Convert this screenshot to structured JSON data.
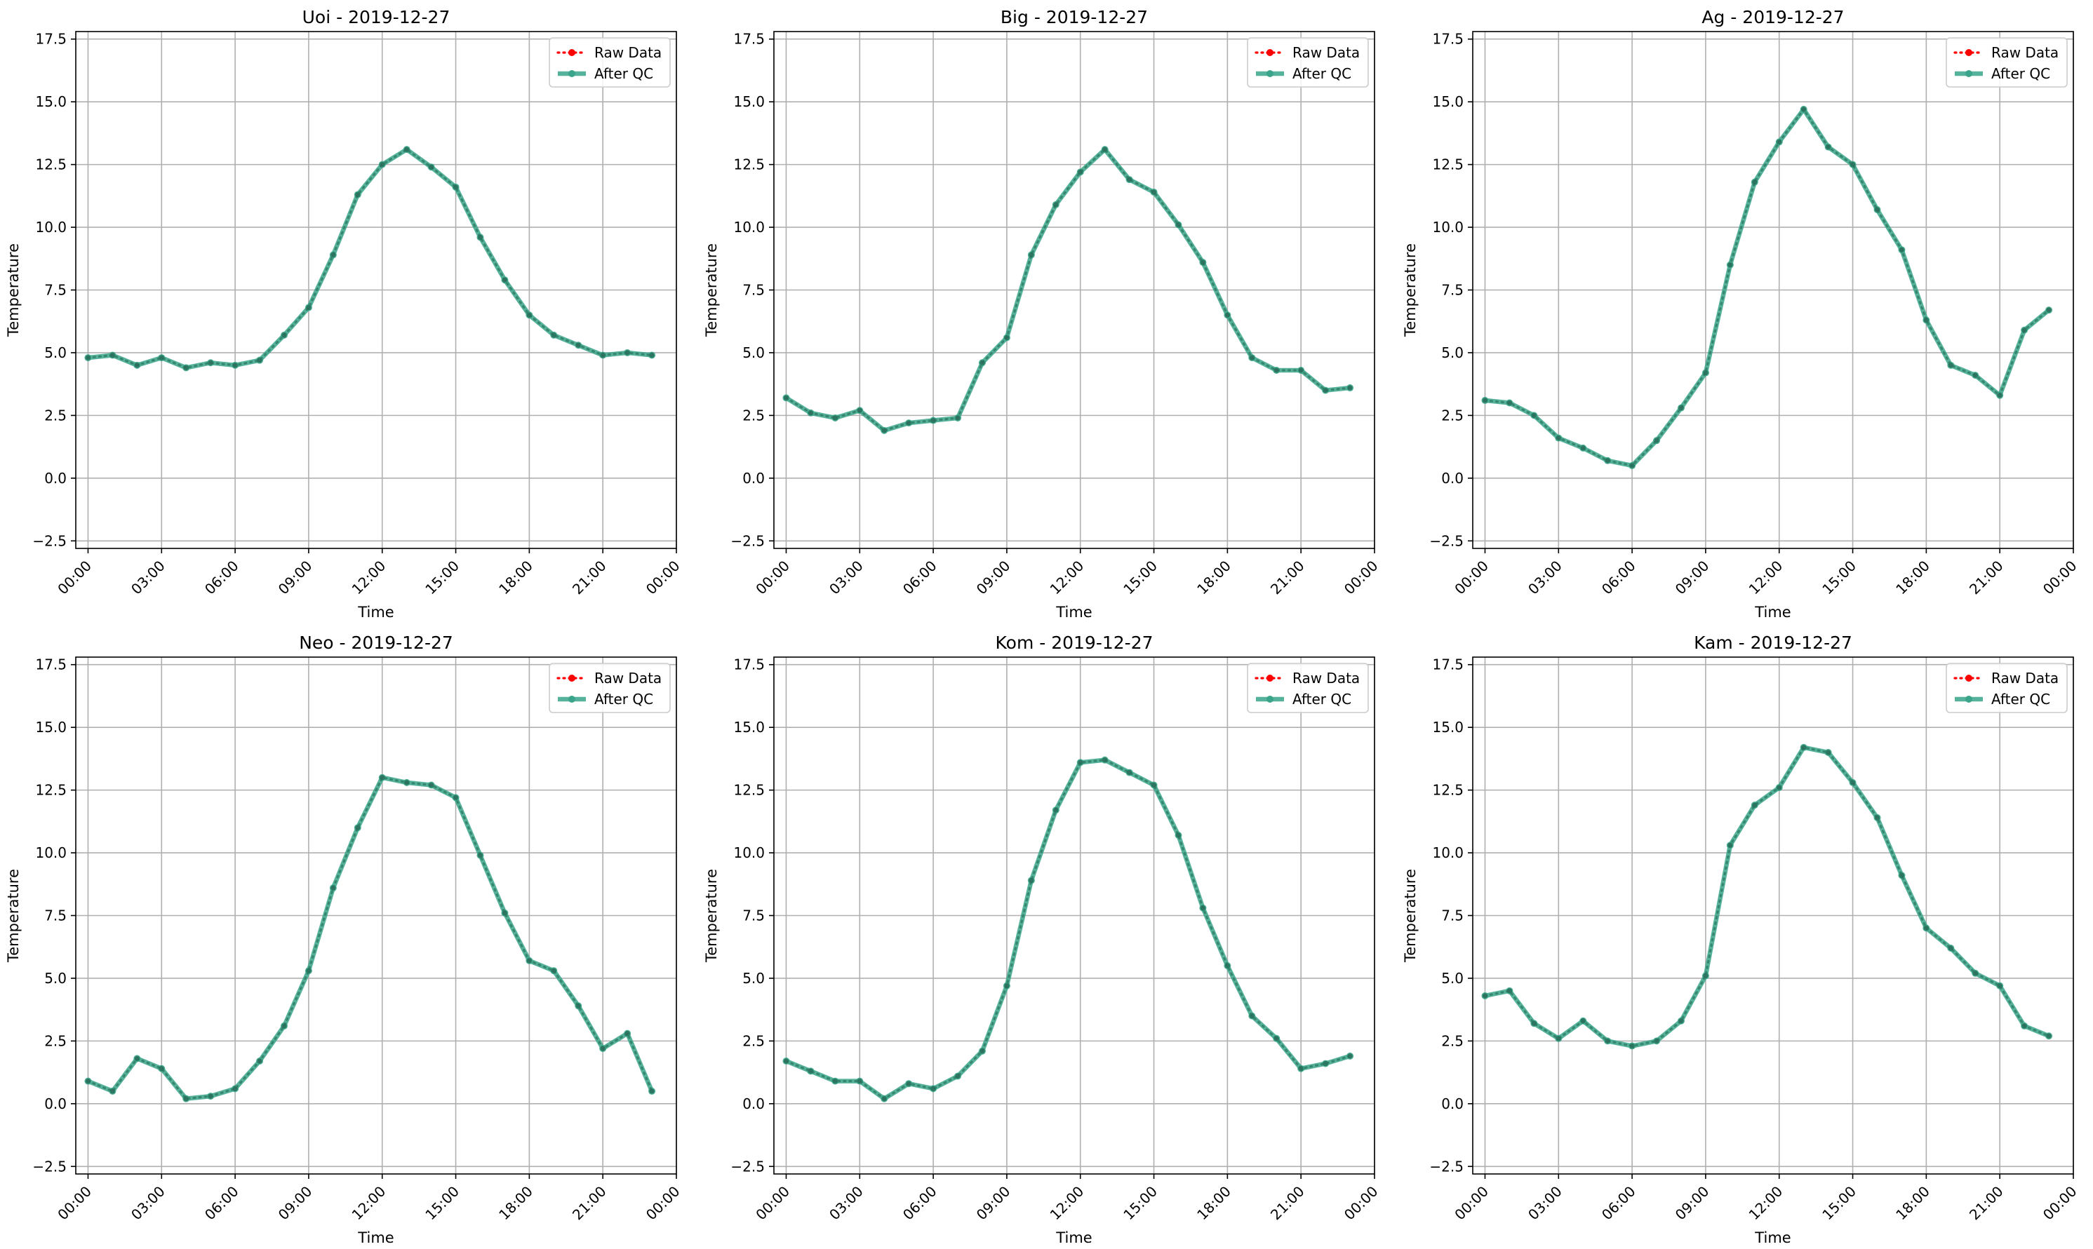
{
  "figure": {
    "x_ticks": [
      "00:00",
      "03:00",
      "06:00",
      "09:00",
      "12:00",
      "15:00",
      "18:00",
      "21:00",
      "00:00"
    ],
    "y_ticks": [
      "−2.5",
      "0.0",
      "2.5",
      "5.0",
      "7.5",
      "10.0",
      "12.5",
      "15.0",
      "17.5"
    ],
    "colors": {
      "raw": "#ff0000",
      "after_qc": "#3aa58a",
      "grid": "#b0b0b0",
      "legend_edge": "#cccccc"
    }
  },
  "chart_data": [
    {
      "type": "line",
      "title": "Uoi - 2019-12-27",
      "xlabel": "Time",
      "ylabel": "Temperature",
      "xlim": [
        -0.5,
        24.0
      ],
      "ylim": [
        -2.8,
        17.8
      ],
      "grid": true,
      "legend_position": "top-right",
      "x_tick_values": [
        0,
        3,
        6,
        9,
        12,
        15,
        18,
        21,
        24
      ],
      "y_tick_values": [
        -2.5,
        0,
        2.5,
        5,
        7.5,
        10,
        12.5,
        15,
        17.5
      ],
      "x": [
        0,
        1,
        2,
        3,
        4,
        5,
        6,
        7,
        8,
        9,
        10,
        11,
        12,
        13,
        14,
        15,
        16,
        17,
        18,
        19,
        20,
        21,
        22,
        23
      ],
      "series": [
        {
          "name": "Raw Data",
          "values": [
            4.8,
            4.9,
            4.5,
            4.8,
            4.4,
            4.6,
            4.5,
            4.7,
            5.7,
            6.8,
            8.9,
            11.3,
            12.5,
            13.1,
            12.4,
            11.6,
            9.6,
            7.9,
            6.5,
            5.7,
            5.3,
            4.9,
            5.0,
            4.9
          ]
        },
        {
          "name": "After QC",
          "values": [
            4.8,
            4.9,
            4.5,
            4.8,
            4.4,
            4.6,
            4.5,
            4.7,
            5.7,
            6.8,
            8.9,
            11.3,
            12.5,
            13.1,
            12.4,
            11.6,
            9.6,
            7.9,
            6.5,
            5.7,
            5.3,
            4.9,
            5.0,
            4.9
          ]
        }
      ]
    },
    {
      "type": "line",
      "title": "Big - 2019-12-27",
      "xlabel": "Time",
      "ylabel": "Temperature",
      "xlim": [
        -0.5,
        24.0
      ],
      "ylim": [
        -2.8,
        17.8
      ],
      "grid": true,
      "legend_position": "top-right",
      "x_tick_values": [
        0,
        3,
        6,
        9,
        12,
        15,
        18,
        21,
        24
      ],
      "y_tick_values": [
        -2.5,
        0,
        2.5,
        5,
        7.5,
        10,
        12.5,
        15,
        17.5
      ],
      "x": [
        0,
        1,
        2,
        3,
        4,
        5,
        6,
        7,
        8,
        9,
        10,
        11,
        12,
        13,
        14,
        15,
        16,
        17,
        18,
        19,
        20,
        21,
        22,
        23
      ],
      "series": [
        {
          "name": "Raw Data",
          "values": [
            3.2,
            2.6,
            2.4,
            2.7,
            1.9,
            2.2,
            2.3,
            2.4,
            4.6,
            5.6,
            8.9,
            10.9,
            12.2,
            13.1,
            11.9,
            11.4,
            10.1,
            8.6,
            6.5,
            4.8,
            4.3,
            4.3,
            3.5,
            3.6
          ]
        },
        {
          "name": "After QC",
          "values": [
            3.2,
            2.6,
            2.4,
            2.7,
            1.9,
            2.2,
            2.3,
            2.4,
            4.6,
            5.6,
            8.9,
            10.9,
            12.2,
            13.1,
            11.9,
            11.4,
            10.1,
            8.6,
            6.5,
            4.8,
            4.3,
            4.3,
            3.5,
            3.6
          ]
        }
      ]
    },
    {
      "type": "line",
      "title": "Ag - 2019-12-27",
      "xlabel": "Time",
      "ylabel": "Temperature",
      "xlim": [
        -0.5,
        24.0
      ],
      "ylim": [
        -2.8,
        17.8
      ],
      "grid": true,
      "legend_position": "top-right",
      "x_tick_values": [
        0,
        3,
        6,
        9,
        12,
        15,
        18,
        21,
        24
      ],
      "y_tick_values": [
        -2.5,
        0,
        2.5,
        5,
        7.5,
        10,
        12.5,
        15,
        17.5
      ],
      "x": [
        0,
        1,
        2,
        3,
        4,
        5,
        6,
        7,
        8,
        9,
        10,
        11,
        12,
        13,
        14,
        15,
        16,
        17,
        18,
        19,
        20,
        21,
        22,
        23
      ],
      "series": [
        {
          "name": "Raw Data",
          "values": [
            3.1,
            3.0,
            2.5,
            1.6,
            1.2,
            0.7,
            0.5,
            1.5,
            2.8,
            4.2,
            8.5,
            11.8,
            13.4,
            14.7,
            13.2,
            12.5,
            10.7,
            9.1,
            6.3,
            4.5,
            4.1,
            3.3,
            5.9,
            6.7
          ]
        },
        {
          "name": "After QC",
          "values": [
            3.1,
            3.0,
            2.5,
            1.6,
            1.2,
            0.7,
            0.5,
            1.5,
            2.8,
            4.2,
            8.5,
            11.8,
            13.4,
            14.7,
            13.2,
            12.5,
            10.7,
            9.1,
            6.3,
            4.5,
            4.1,
            3.3,
            5.9,
            6.7
          ]
        }
      ]
    },
    {
      "type": "line",
      "title": "Neo - 2019-12-27",
      "xlabel": "Time",
      "ylabel": "Temperature",
      "xlim": [
        -0.5,
        24.0
      ],
      "ylim": [
        -2.8,
        17.8
      ],
      "grid": true,
      "legend_position": "top-right",
      "x_tick_values": [
        0,
        3,
        6,
        9,
        12,
        15,
        18,
        21,
        24
      ],
      "y_tick_values": [
        -2.5,
        0,
        2.5,
        5,
        7.5,
        10,
        12.5,
        15,
        17.5
      ],
      "x": [
        0,
        1,
        2,
        3,
        4,
        5,
        6,
        7,
        8,
        9,
        10,
        11,
        12,
        13,
        14,
        15,
        16,
        17,
        18,
        19,
        20,
        21,
        22,
        23
      ],
      "series": [
        {
          "name": "Raw Data",
          "values": [
            0.9,
            0.5,
            1.8,
            1.4,
            0.2,
            0.3,
            0.6,
            1.7,
            3.1,
            5.3,
            8.6,
            11.0,
            13.0,
            12.8,
            12.7,
            12.2,
            9.9,
            7.6,
            5.7,
            5.3,
            3.9,
            2.2,
            2.8,
            0.5
          ]
        },
        {
          "name": "After QC",
          "values": [
            0.9,
            0.5,
            1.8,
            1.4,
            0.2,
            0.3,
            0.6,
            1.7,
            3.1,
            5.3,
            8.6,
            11.0,
            13.0,
            12.8,
            12.7,
            12.2,
            9.9,
            7.6,
            5.7,
            5.3,
            3.9,
            2.2,
            2.8,
            0.5
          ]
        }
      ]
    },
    {
      "type": "line",
      "title": "Kom - 2019-12-27",
      "xlabel": "Time",
      "ylabel": "Temperature",
      "xlim": [
        -0.5,
        24.0
      ],
      "ylim": [
        -2.8,
        17.8
      ],
      "grid": true,
      "legend_position": "top-right",
      "x_tick_values": [
        0,
        3,
        6,
        9,
        12,
        15,
        18,
        21,
        24
      ],
      "y_tick_values": [
        -2.5,
        0,
        2.5,
        5,
        7.5,
        10,
        12.5,
        15,
        17.5
      ],
      "x": [
        0,
        1,
        2,
        3,
        4,
        5,
        6,
        7,
        8,
        9,
        10,
        11,
        12,
        13,
        14,
        15,
        16,
        17,
        18,
        19,
        20,
        21,
        22,
        23
      ],
      "series": [
        {
          "name": "Raw Data",
          "values": [
            1.7,
            1.3,
            0.9,
            0.9,
            0.2,
            0.8,
            0.6,
            1.1,
            2.1,
            4.7,
            8.9,
            11.7,
            13.6,
            13.7,
            13.2,
            12.7,
            10.7,
            7.8,
            5.5,
            3.5,
            2.6,
            1.4,
            1.6,
            1.9
          ]
        },
        {
          "name": "After QC",
          "values": [
            1.7,
            1.3,
            0.9,
            0.9,
            0.2,
            0.8,
            0.6,
            1.1,
            2.1,
            4.7,
            8.9,
            11.7,
            13.6,
            13.7,
            13.2,
            12.7,
            10.7,
            7.8,
            5.5,
            3.5,
            2.6,
            1.4,
            1.6,
            1.9
          ]
        }
      ]
    },
    {
      "type": "line",
      "title": "Kam - 2019-12-27",
      "xlabel": "Time",
      "ylabel": "Temperature",
      "xlim": [
        -0.5,
        24.0
      ],
      "ylim": [
        -2.8,
        17.8
      ],
      "grid": true,
      "legend_position": "top-right",
      "x_tick_values": [
        0,
        3,
        6,
        9,
        12,
        15,
        18,
        21,
        24
      ],
      "y_tick_values": [
        -2.5,
        0,
        2.5,
        5,
        7.5,
        10,
        12.5,
        15,
        17.5
      ],
      "x": [
        0,
        1,
        2,
        3,
        4,
        5,
        6,
        7,
        8,
        9,
        10,
        11,
        12,
        13,
        14,
        15,
        16,
        17,
        18,
        19,
        20,
        21,
        22,
        23
      ],
      "series": [
        {
          "name": "Raw Data",
          "values": [
            4.3,
            4.5,
            3.2,
            2.6,
            3.3,
            2.5,
            2.3,
            2.5,
            3.3,
            5.1,
            10.3,
            11.9,
            12.6,
            14.2,
            14.0,
            12.8,
            11.4,
            9.1,
            7.0,
            6.2,
            5.2,
            4.7,
            3.1,
            2.7
          ]
        },
        {
          "name": "After QC",
          "values": [
            4.3,
            4.5,
            3.2,
            2.6,
            3.3,
            2.5,
            2.3,
            2.5,
            3.3,
            5.1,
            10.3,
            11.9,
            12.6,
            14.2,
            14.0,
            12.8,
            11.4,
            9.1,
            7.0,
            6.2,
            5.2,
            4.7,
            3.1,
            2.7
          ]
        }
      ]
    }
  ]
}
